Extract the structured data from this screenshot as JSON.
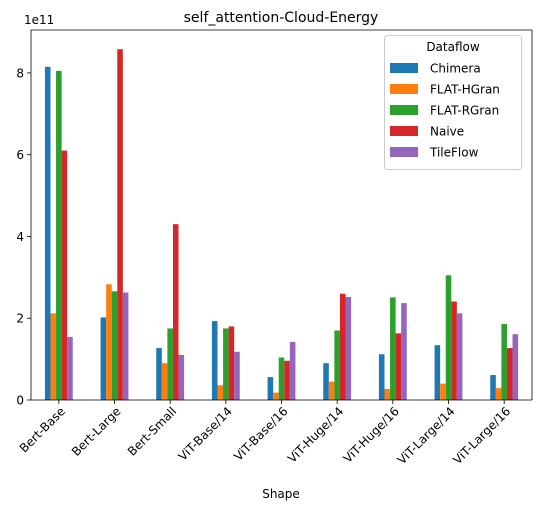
{
  "chart_data": {
    "type": "bar",
    "title": "self_attention-Cloud-Energy",
    "xlabel": "Shape",
    "ylabel": "",
    "y_offset_label": "1e11",
    "ylim": [
      0,
      9.05
    ],
    "yticks": [
      0,
      2,
      4,
      6,
      8
    ],
    "grid": false,
    "legend": {
      "title": "Dataflow",
      "placement": "top-right"
    },
    "categories": [
      "Bert-Base",
      "Bert-Large",
      "Bert-Small",
      "ViT-Base/14",
      "ViT-Base/16",
      "ViT-Huge/14",
      "ViT-Huge/16",
      "ViT-Large/14",
      "ViT-Large/16"
    ],
    "series": [
      {
        "name": "Chimera",
        "color": "#1f77b4",
        "values": [
          8.15,
          2.02,
          1.27,
          1.93,
          0.56,
          0.9,
          1.12,
          1.34,
          0.61
        ]
      },
      {
        "name": "FLAT-HGran",
        "color": "#ff7f0e",
        "values": [
          2.12,
          2.83,
          0.9,
          0.36,
          0.18,
          0.45,
          0.27,
          0.4,
          0.29
        ]
      },
      {
        "name": "FLAT-RGran",
        "color": "#2ca02c",
        "values": [
          8.05,
          2.66,
          1.75,
          1.75,
          1.04,
          1.7,
          2.51,
          3.05,
          1.86
        ]
      },
      {
        "name": "Naive",
        "color": "#d62728",
        "values": [
          6.1,
          8.58,
          4.3,
          1.8,
          0.96,
          2.6,
          1.63,
          2.41,
          1.27
        ]
      },
      {
        "name": "TileFlow",
        "color": "#9467bd",
        "values": [
          1.54,
          2.63,
          1.1,
          1.18,
          1.42,
          2.52,
          2.37,
          2.12,
          1.61
        ]
      }
    ]
  }
}
